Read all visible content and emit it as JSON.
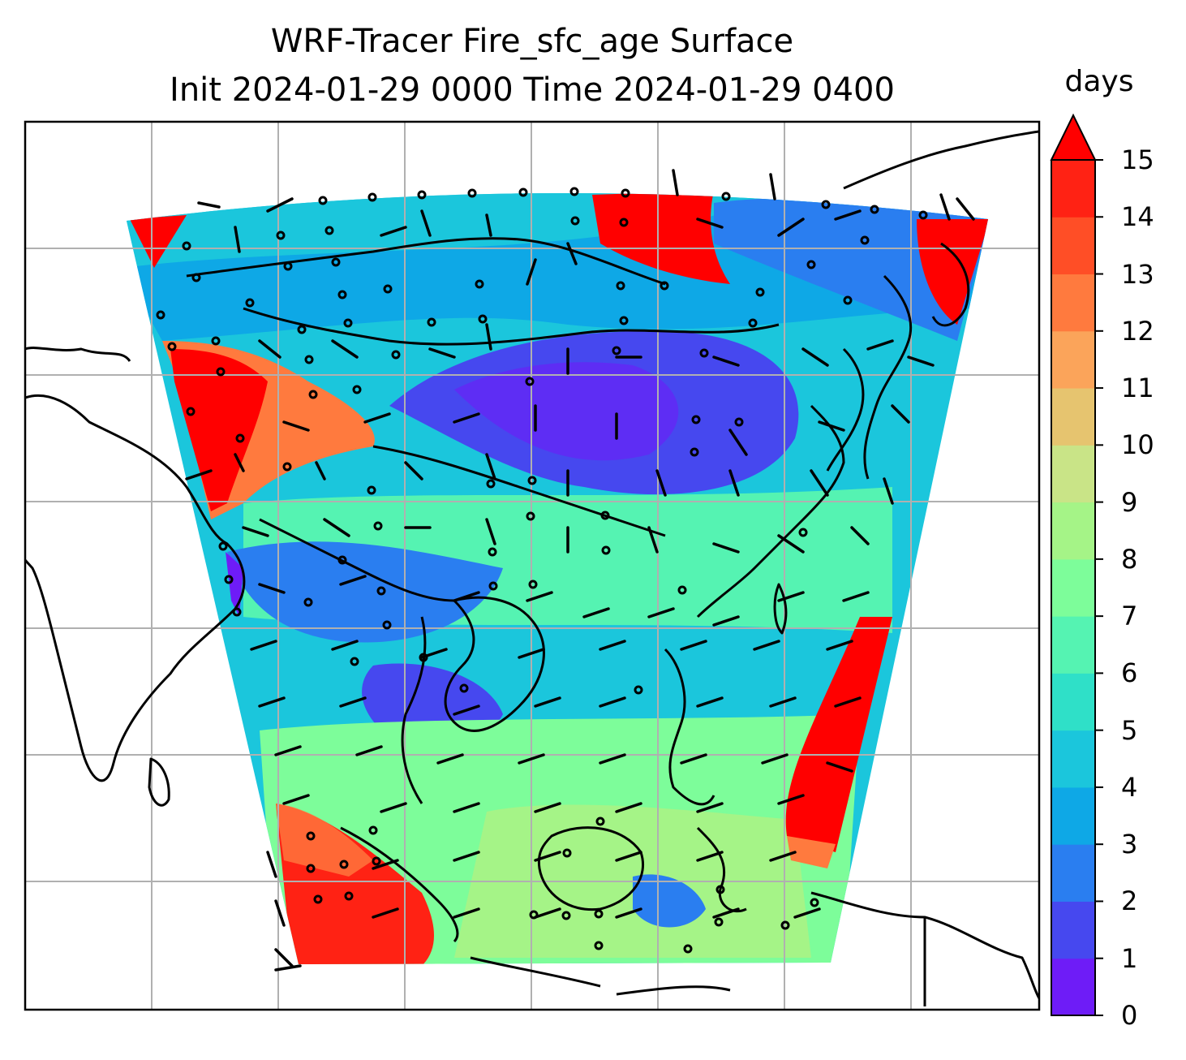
{
  "title_line1": "WRF-Tracer Fire_sfc_age Surface",
  "title_line2": "Init 2024-01-29 0000 Time 2024-01-29 0400",
  "colorbar": {
    "unit": "days",
    "ticks": [
      "0",
      "1",
      "2",
      "3",
      "4",
      "5",
      "6",
      "7",
      "8",
      "9",
      "10",
      "11",
      "12",
      "13",
      "14",
      "15"
    ],
    "colors": [
      "#6e1cf7",
      "#4648ef",
      "#2a7ef0",
      "#0ea8e6",
      "#1bc6dc",
      "#2fe0c8",
      "#55f3b2",
      "#7dfd9a",
      "#a5f487",
      "#c9e487",
      "#e6c46f",
      "#fba45a",
      "#ff7a3e",
      "#ff4e26",
      "#ff2214"
    ],
    "overflow_color": "#ff0000",
    "range": [
      0,
      15
    ],
    "extend": "max"
  },
  "map": {
    "projection": "Lambert Conformal",
    "gridlines": true,
    "coastlines": true,
    "wind_barbs": true
  }
}
